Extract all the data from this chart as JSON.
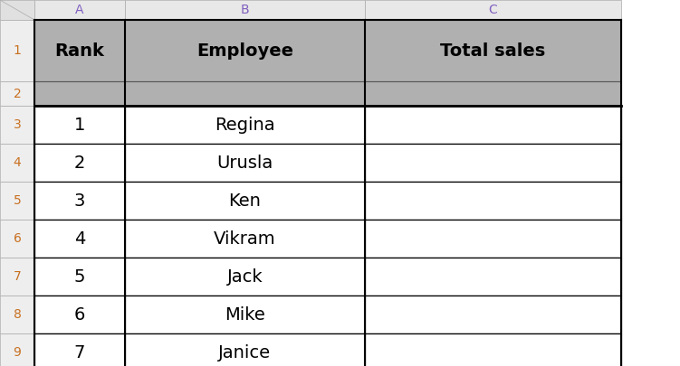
{
  "col_labels": [
    "A",
    "B",
    "C"
  ],
  "row_labels": [
    "1",
    "2",
    "3",
    "4",
    "5",
    "6",
    "7",
    "8",
    "9"
  ],
  "header_texts": [
    "Rank",
    "Employee",
    "Total sales"
  ],
  "data_rows": [
    [
      "1",
      "Regina",
      ""
    ],
    [
      "2",
      "Urusla",
      ""
    ],
    [
      "3",
      "Ken",
      ""
    ],
    [
      "4",
      "Vikram",
      ""
    ],
    [
      "5",
      "Jack",
      ""
    ],
    [
      "6",
      "Mike",
      ""
    ],
    [
      "7",
      "Janice",
      ""
    ]
  ],
  "header_bg": "#b0b0b0",
  "data_bg": "#ffffff",
  "row_label_bg": "#eeeeee",
  "col_label_bg": "#e8e8e8",
  "corner_bg": "#e0e0e0",
  "header_text_color": "#000000",
  "data_text_color": "#000000",
  "row_label_color": "#c87020",
  "col_label_color": "#8060c0",
  "font_size_header": 14,
  "font_size_data": 14,
  "font_size_row_label": 10,
  "font_size_col_label": 10,
  "fig_width": 7.51,
  "fig_height": 4.05,
  "dpi": 100
}
